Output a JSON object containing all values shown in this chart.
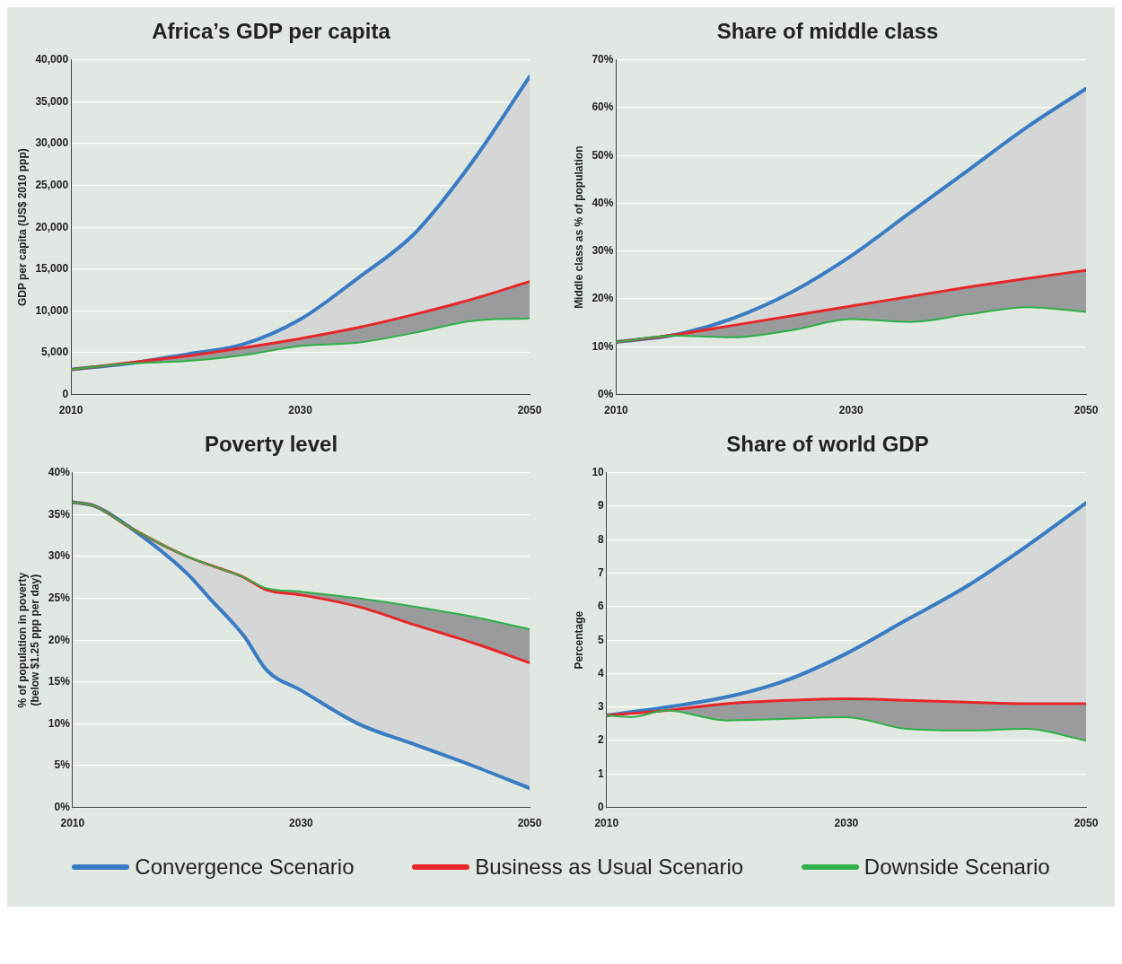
{
  "chart_data": [
    {
      "type": "line",
      "title": "Africa’s GDP per capita",
      "ylabel": "GDP per capita (US$ 2010 ppp)",
      "x": [
        2010,
        2015,
        2020,
        2025,
        2030,
        2035,
        2040,
        2045,
        2050
      ],
      "series": [
        {
          "color": "#3a7cc4",
          "values": [
            3000,
            3700,
            4800,
            6000,
            9000,
            13900,
            19300,
            27800,
            38000
          ],
          "lower": [
            3000,
            3800,
            4600,
            5600,
            6700,
            8000,
            9600,
            11400,
            13500
          ],
          "upper": [
            3000,
            3700,
            4800,
            6000,
            9000,
            13900,
            19300,
            27800,
            38000
          ]
        },
        {
          "color": "#e8262b",
          "values": [
            3000,
            3800,
            4600,
            5600,
            6700,
            8000,
            9600,
            11400,
            13500
          ],
          "lower": [
            3000,
            3700,
            4000,
            4700,
            5800,
            6200,
            7400,
            8800,
            9100
          ],
          "upper": [
            3000,
            3800,
            4600,
            5600,
            6700,
            8000,
            9600,
            11400,
            13500
          ]
        },
        {
          "color": "#2fb04a",
          "values": [
            3000,
            3700,
            4000,
            4700,
            5800,
            6200,
            7400,
            8800,
            9100
          ]
        }
      ],
      "xlim": [
        2010,
        2050
      ],
      "xticks": [
        2010,
        2030,
        2050
      ],
      "ylim": [
        0,
        40000
      ],
      "yticks": [
        0,
        {
          "value": 5000,
          "label": "5,000"
        },
        {
          "value": 10000,
          "label": "10,000"
        },
        {
          "value": 15000,
          "label": "15,000"
        },
        {
          "value": 20000,
          "label": "20,000"
        },
        {
          "value": 25000,
          "label": "25,000"
        },
        {
          "value": 30000,
          "label": "30,000"
        },
        {
          "value": 35000,
          "label": "35,000"
        },
        {
          "value": 40000,
          "label": "40,000"
        }
      ],
      "grid": "y",
      "marker": "none"
    },
    {
      "type": "line",
      "title": "Share of middle class",
      "ylabel": "Middle class as % of population",
      "x": [
        2010,
        2015,
        2020,
        2025,
        2030,
        2035,
        2040,
        2045,
        2050
      ],
      "series": [
        {
          "color": "#3a7cc4",
          "values": [
            11,
            12.5,
            16,
            21.5,
            29,
            38,
            47,
            56,
            64
          ],
          "lower": [
            11,
            12.5,
            14.5,
            16.5,
            18.5,
            20.5,
            22.5,
            24.3,
            26
          ],
          "upper": [
            11,
            12.5,
            16,
            21.5,
            29,
            38,
            47,
            56,
            64
          ]
        },
        {
          "color": "#e8262b",
          "values": [
            11,
            12.5,
            14.5,
            16.5,
            18.5,
            20.5,
            22.5,
            24.3,
            26
          ],
          "lower": [
            11,
            12.3,
            12,
            13.5,
            15.8,
            15.2,
            16.8,
            18.3,
            17.3
          ],
          "upper": [
            11,
            12.5,
            14.5,
            16.5,
            18.5,
            20.5,
            22.5,
            24.3,
            26
          ]
        },
        {
          "color": "#2fb04a",
          "values": [
            11,
            12.3,
            12,
            13.5,
            15.8,
            15.2,
            16.8,
            18.3,
            17.3
          ]
        }
      ],
      "xlim": [
        2010,
        2050
      ],
      "xticks": [
        2010,
        2030,
        2050
      ],
      "ylim": [
        0,
        70
      ],
      "yticks": [
        {
          "value": 0,
          "label": "0%"
        },
        {
          "value": 10,
          "label": "10%"
        },
        {
          "value": 20,
          "label": "20%"
        },
        {
          "value": 30,
          "label": "30%"
        },
        {
          "value": 40,
          "label": "40%"
        },
        {
          "value": 50,
          "label": "50%"
        },
        {
          "value": 60,
          "label": "60%"
        },
        {
          "value": 70,
          "label": "70%"
        }
      ],
      "grid": "y",
      "marker": "none"
    },
    {
      "type": "line",
      "title": "Poverty level",
      "ylabel": "% of population in poverty\n(below $1.25 ppp per day)",
      "x": [
        2010,
        2012,
        2015,
        2020,
        2022,
        2025,
        2027,
        2030,
        2035,
        2040,
        2045,
        2050
      ],
      "series": [
        {
          "color": "#3a7cc4",
          "values": [
            36.5,
            36,
            33.5,
            28,
            25,
            20.5,
            16.4,
            14,
            10,
            7.5,
            5,
            2.3
          ],
          "lower": [
            36.5,
            36,
            33.5,
            28,
            25,
            20.5,
            16.4,
            14,
            10,
            7.5,
            5,
            2.3
          ],
          "upper": [
            36.5,
            36,
            33.5,
            30,
            29,
            27.5,
            26,
            25.4,
            24,
            21.8,
            19.7,
            17.3
          ]
        },
        {
          "color": "#e8262b",
          "values": [
            36.5,
            36,
            33.5,
            30,
            29,
            27.5,
            26,
            25.4,
            24,
            21.8,
            19.7,
            17.3
          ],
          "lower": [
            36.5,
            36,
            33.5,
            30,
            29,
            27.5,
            26,
            25.4,
            24,
            21.8,
            19.7,
            17.3
          ],
          "upper": [
            36.5,
            36,
            33.5,
            30,
            29,
            27.5,
            26.2,
            25.8,
            25,
            24,
            22.8,
            21.3
          ]
        },
        {
          "color": "#2fb04a",
          "values": [
            36.5,
            36,
            33.5,
            30,
            29,
            27.5,
            26.2,
            25.8,
            25,
            24,
            22.8,
            21.3
          ]
        }
      ],
      "xlim": [
        2010,
        2050
      ],
      "xticks": [
        2010,
        2030,
        2050
      ],
      "ylim": [
        0,
        40
      ],
      "yticks": [
        {
          "value": 0,
          "label": "0%"
        },
        {
          "value": 5,
          "label": "5%"
        },
        {
          "value": 10,
          "label": "10%"
        },
        {
          "value": 15,
          "label": "15%"
        },
        {
          "value": 20,
          "label": "20%"
        },
        {
          "value": 25,
          "label": "25%"
        },
        {
          "value": 30,
          "label": "30%"
        },
        {
          "value": 35,
          "label": "35%"
        },
        {
          "value": 40,
          "label": "40%"
        }
      ],
      "grid": "y",
      "marker": "none"
    },
    {
      "type": "line",
      "title": "Share of world GDP",
      "ylabel": "Percentage",
      "x": [
        2010,
        2012,
        2015,
        2020,
        2025,
        2030,
        2035,
        2040,
        2045,
        2050
      ],
      "series": [
        {
          "name": "Convergence Scenario",
          "color": "#3a7cc4",
          "values": [
            2.75,
            null,
            null,
            3.3,
            3.8,
            4.6,
            5.6,
            6.6,
            7.8,
            9.1
          ],
          "lower": [
            2.75,
            2.7,
            2.9,
            3.1,
            3.2,
            3.25,
            3.2,
            3.15,
            3.1,
            3.1
          ],
          "upper": [
            2.75,
            2.7,
            2.9,
            3.3,
            3.8,
            4.6,
            5.6,
            6.6,
            7.8,
            9.1
          ]
        },
        {
          "name": "Business as Usual Scenario",
          "color": "#e8262b",
          "values": [
            2.75,
            null,
            2.9,
            3.1,
            3.2,
            3.25,
            3.2,
            3.15,
            3.1,
            3.1
          ],
          "lower": [
            2.75,
            2.7,
            2.9,
            2.6,
            2.65,
            2.7,
            2.35,
            2.3,
            2.35,
            2.0
          ],
          "upper": [
            2.75,
            2.7,
            2.9,
            3.1,
            3.2,
            3.25,
            3.2,
            3.15,
            3.1,
            3.1
          ]
        },
        {
          "name": "Downside Scenario",
          "color": "#2fb04a",
          "values": [
            2.75,
            2.7,
            2.9,
            2.6,
            2.65,
            2.7,
            2.35,
            2.3,
            2.35,
            2.0
          ]
        }
      ],
      "xlim": [
        2010,
        2050
      ],
      "xticks": [
        2010,
        2030,
        2050
      ],
      "ylim": [
        0,
        10
      ],
      "yticks": [
        0,
        1,
        2,
        3,
        4,
        5,
        6,
        7,
        8,
        9,
        10
      ],
      "grid": "y",
      "legend": "bottom",
      "marker": "none"
    }
  ]
}
